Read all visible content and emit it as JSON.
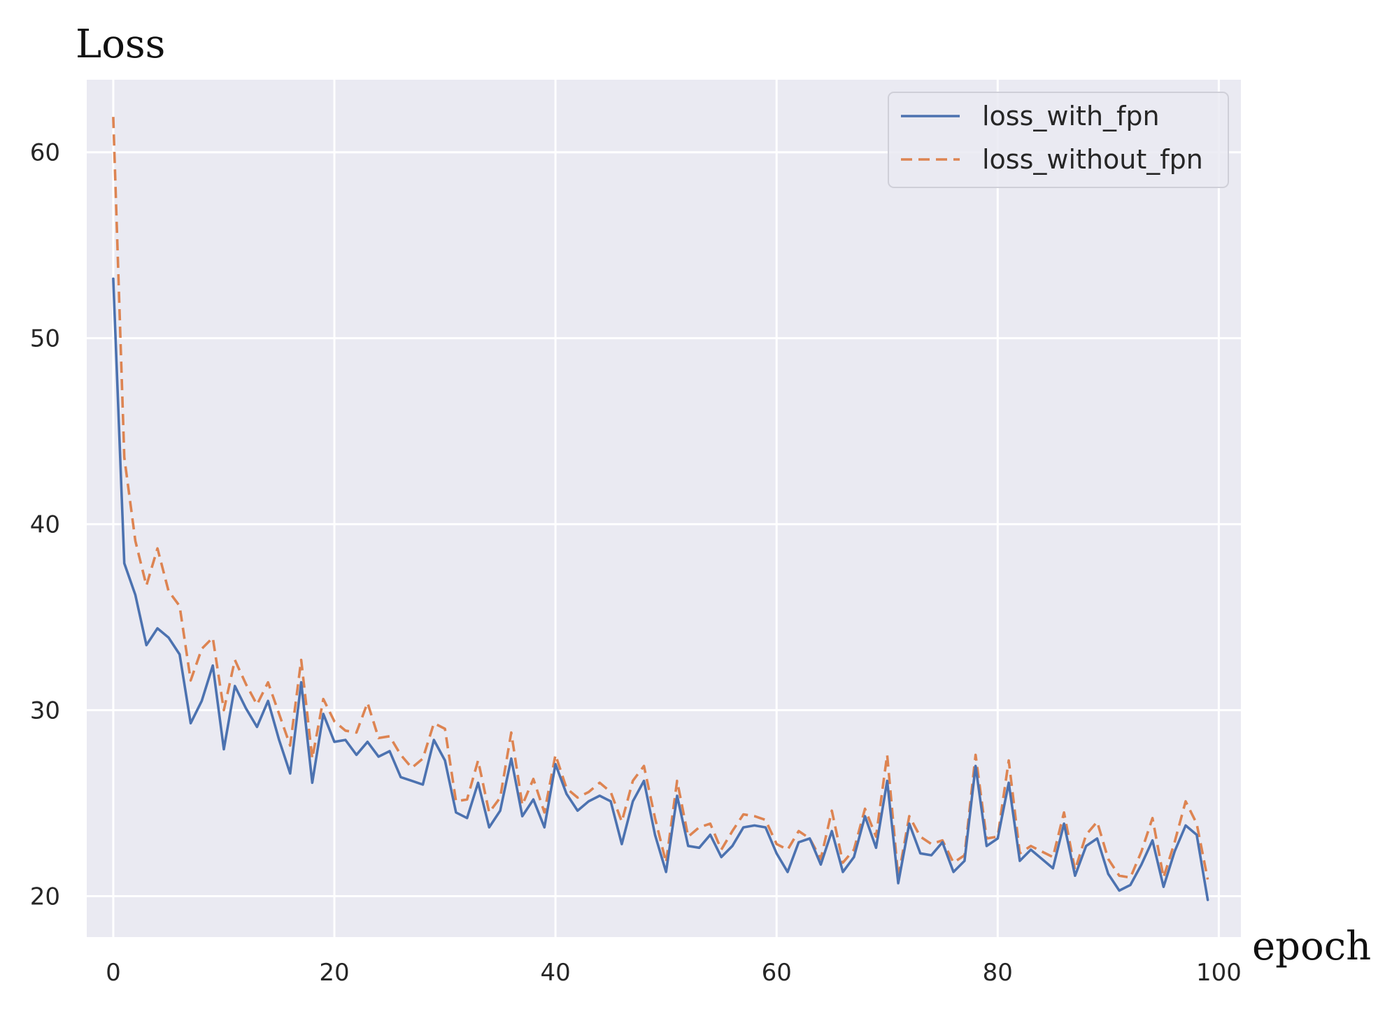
{
  "chart_data": {
    "type": "line",
    "title": "",
    "xlabel": "epoch",
    "ylabel": "Loss",
    "xlim": [
      -2.4,
      102
    ],
    "ylim": [
      17.8,
      63.9
    ],
    "xticks": [
      0,
      20,
      40,
      60,
      80,
      100
    ],
    "yticks": [
      20,
      30,
      40,
      50,
      60
    ],
    "grid": true,
    "legend_position": "top-right",
    "colors": {
      "background": "#eaeaf2",
      "grid": "#ffffff",
      "loss_with_fpn": "#4c72b0",
      "loss_without_fpn": "#dd8452"
    },
    "series": [
      {
        "name": "loss_with_fpn",
        "style": "solid",
        "values": [
          53.2,
          37.9,
          36.2,
          33.5,
          34.4,
          33.9,
          33.0,
          29.3,
          30.5,
          32.4,
          27.9,
          31.3,
          30.1,
          29.1,
          30.5,
          28.4,
          26.6,
          31.5,
          26.1,
          29.8,
          28.3,
          28.4,
          27.6,
          28.3,
          27.5,
          27.8,
          26.4,
          26.2,
          26.0,
          28.4,
          27.3,
          24.5,
          24.2,
          26.1,
          23.7,
          24.6,
          27.4,
          24.3,
          25.2,
          23.7,
          27.1,
          25.5,
          24.6,
          25.1,
          25.4,
          25.1,
          22.8,
          25.1,
          26.2,
          23.3,
          21.3,
          25.4,
          22.7,
          22.6,
          23.3,
          22.1,
          22.7,
          23.7,
          23.8,
          23.7,
          22.3,
          21.3,
          22.9,
          23.1,
          21.7,
          23.5,
          21.3,
          22.1,
          24.3,
          22.6,
          26.2,
          20.7,
          23.9,
          22.3,
          22.2,
          22.9,
          21.3,
          21.9,
          27.0,
          22.7,
          23.1,
          26.1,
          21.9,
          22.5,
          22.0,
          21.5,
          23.9,
          21.1,
          22.7,
          23.1,
          21.2,
          20.3,
          20.6,
          21.7,
          23.0,
          20.5,
          22.4,
          23.8,
          23.3,
          19.8
        ]
      },
      {
        "name": "loss_without_fpn",
        "style": "dashed",
        "values": [
          61.9,
          43.6,
          39.1,
          36.7,
          38.7,
          36.4,
          35.6,
          31.6,
          33.3,
          33.9,
          30.0,
          32.7,
          31.4,
          30.3,
          31.5,
          29.8,
          28.1,
          32.7,
          27.4,
          30.6,
          29.4,
          28.9,
          28.8,
          30.4,
          28.5,
          28.6,
          27.6,
          26.9,
          27.4,
          29.3,
          29.0,
          25.1,
          25.2,
          27.3,
          24.5,
          25.3,
          28.8,
          24.9,
          26.3,
          24.5,
          27.6,
          25.8,
          25.3,
          25.6,
          26.1,
          25.6,
          24.0,
          26.2,
          27.0,
          24.2,
          21.8,
          26.2,
          23.2,
          23.7,
          23.9,
          22.5,
          23.5,
          24.4,
          24.3,
          24.1,
          22.8,
          22.5,
          23.5,
          23.1,
          22.0,
          24.6,
          21.8,
          22.5,
          24.7,
          23.2,
          27.6,
          21.0,
          24.3,
          23.2,
          22.8,
          23.0,
          21.8,
          22.2,
          27.6,
          23.1,
          23.2,
          27.3,
          22.3,
          22.7,
          22.4,
          22.1,
          24.5,
          21.4,
          23.3,
          24.0,
          22.0,
          21.1,
          21.0,
          22.4,
          24.2,
          21.0,
          22.9,
          25.1,
          23.9,
          20.9
        ]
      }
    ]
  }
}
